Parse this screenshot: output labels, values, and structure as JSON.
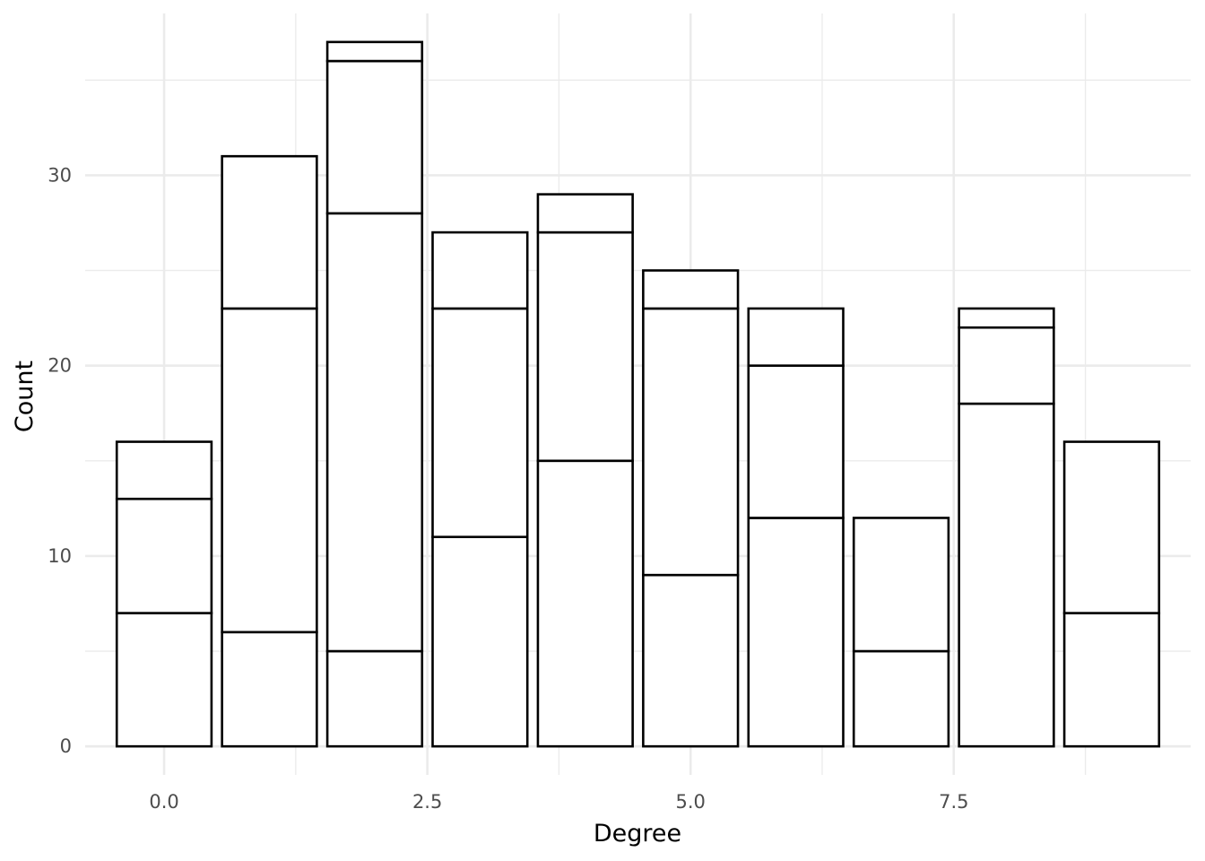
{
  "chart_data": {
    "type": "bar",
    "stacked": true,
    "xlabel": "Degree",
    "ylabel": "Count",
    "xlim": [
      -0.75,
      9.75
    ],
    "ylim": [
      -1.5,
      38.5
    ],
    "x_ticks": [
      0.0,
      2.5,
      5.0,
      7.5
    ],
    "x_tick_labels": [
      "0.0",
      "2.5",
      "5.0",
      "7.5"
    ],
    "x_minor_ticks": [
      1.25,
      3.75,
      6.25,
      8.75
    ],
    "y_ticks": [
      0,
      10,
      20,
      30
    ],
    "y_tick_labels": [
      "0",
      "10",
      "20",
      "30"
    ],
    "y_minor_ticks": [
      5,
      15,
      25,
      35
    ],
    "bar_width": 0.9,
    "grid": true,
    "fill_color": "#ffffff",
    "outline_color": "#000000",
    "grid_color": "#ebebeb",
    "bars": [
      {
        "x": 0,
        "segments": [
          7,
          6,
          3
        ]
      },
      {
        "x": 1,
        "segments": [
          6,
          17,
          8
        ]
      },
      {
        "x": 2,
        "segments": [
          5,
          23,
          8,
          1
        ]
      },
      {
        "x": 3,
        "segments": [
          11,
          12,
          4
        ]
      },
      {
        "x": 4,
        "segments": [
          15,
          12,
          2
        ]
      },
      {
        "x": 5,
        "segments": [
          9,
          14,
          2
        ]
      },
      {
        "x": 6,
        "segments": [
          12,
          8,
          3
        ]
      },
      {
        "x": 7,
        "segments": [
          5,
          7
        ]
      },
      {
        "x": 8,
        "segments": [
          18,
          4,
          1
        ]
      },
      {
        "x": 9,
        "segments": [
          7,
          9
        ]
      }
    ]
  }
}
